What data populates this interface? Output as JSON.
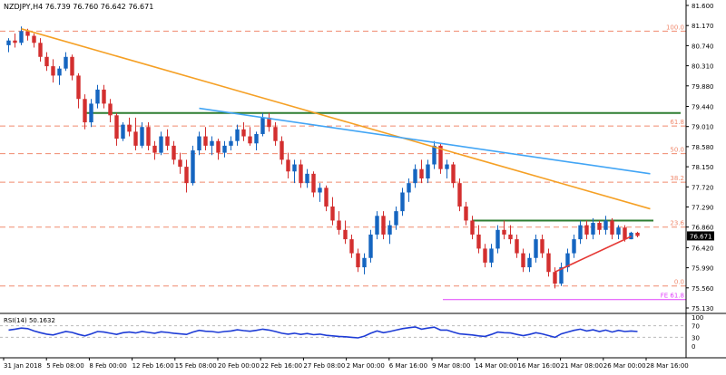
{
  "header": {
    "symbol_line": "NZDJPY,H4 76.739 76.760 76.642 76.671"
  },
  "chart_data": {
    "type": "candlestick",
    "symbol": "NZDJPY",
    "timeframe": "H4",
    "ohlc_last": {
      "open": 76.739,
      "high": 76.76,
      "low": 76.642,
      "close": 76.671
    },
    "price_axis": {
      "ticks": [
        "81.600",
        "81.170",
        "80.740",
        "80.310",
        "79.880",
        "79.440",
        "79.010",
        "78.580",
        "78.150",
        "77.720",
        "77.290",
        "76.860",
        "76.420",
        "75.990",
        "75.560",
        "75.130"
      ],
      "ylim": [
        75.13,
        81.6
      ],
      "current_price": "76.671"
    },
    "time_axis": {
      "labels": [
        "31 Jan 2018",
        "5 Feb 08:00",
        "8 Feb 00:00",
        "12 Feb 16:00",
        "15 Feb 08:00",
        "20 Feb 00:00",
        "22 Feb 16:00",
        "27 Feb 08:00",
        "2 Mar 00:00",
        "6 Mar 16:00",
        "9 Mar 08:00",
        "14 Mar 00:00",
        "16 Mar 16:00",
        "21 Mar 08:00",
        "26 Mar 00:00",
        "28 Mar 16:00"
      ]
    },
    "fib_levels": [
      {
        "label": "100.0",
        "price": 81.05
      },
      {
        "label": "61.8",
        "price": 79.02
      },
      {
        "label": "50.0",
        "price": 78.43
      },
      {
        "label": "38.2",
        "price": 77.82
      },
      {
        "label": "23.6",
        "price": 76.86
      },
      {
        "label": "0.0",
        "price": 75.6
      },
      {
        "label": "FE 61.8",
        "price": 75.31
      }
    ],
    "horizontal_lines": [
      {
        "price": 79.3,
        "color": "#2e7d32"
      },
      {
        "price": 77.0,
        "color": "#2e7d32"
      }
    ],
    "candles": [
      [
        80.75,
        80.9,
        80.6,
        80.85
      ],
      [
        80.85,
        81.0,
        80.7,
        80.8
      ],
      [
        80.8,
        81.15,
        80.75,
        81.05
      ],
      [
        81.05,
        81.1,
        80.85,
        80.95
      ],
      [
        80.95,
        81.0,
        80.7,
        80.8
      ],
      [
        80.8,
        80.9,
        80.4,
        80.5
      ],
      [
        80.5,
        80.6,
        80.2,
        80.3
      ],
      [
        80.3,
        80.45,
        79.95,
        80.1
      ],
      [
        80.1,
        80.3,
        79.9,
        80.25
      ],
      [
        80.25,
        80.6,
        80.2,
        80.5
      ],
      [
        80.5,
        80.55,
        80.0,
        80.1
      ],
      [
        80.1,
        80.15,
        79.4,
        79.6
      ],
      [
        79.6,
        79.7,
        78.95,
        79.1
      ],
      [
        79.1,
        79.6,
        79.0,
        79.5
      ],
      [
        79.5,
        79.9,
        79.4,
        79.8
      ],
      [
        79.8,
        79.9,
        79.4,
        79.5
      ],
      [
        79.5,
        79.6,
        79.1,
        79.25
      ],
      [
        79.25,
        79.3,
        78.6,
        78.75
      ],
      [
        78.75,
        79.1,
        78.7,
        79.05
      ],
      [
        79.05,
        79.2,
        78.8,
        78.9
      ],
      [
        78.9,
        79.2,
        78.5,
        78.6
      ],
      [
        78.6,
        79.1,
        78.55,
        79.0
      ],
      [
        79.0,
        79.1,
        78.5,
        78.6
      ],
      [
        78.6,
        78.7,
        78.3,
        78.45
      ],
      [
        78.45,
        78.9,
        78.4,
        78.8
      ],
      [
        78.8,
        78.95,
        78.5,
        78.6
      ],
      [
        78.6,
        78.7,
        78.2,
        78.3
      ],
      [
        78.3,
        78.45,
        78.0,
        78.15
      ],
      [
        78.15,
        78.3,
        77.6,
        77.8
      ],
      [
        77.8,
        78.6,
        77.75,
        78.5
      ],
      [
        78.5,
        78.9,
        78.4,
        78.8
      ],
      [
        78.8,
        79.0,
        78.5,
        78.6
      ],
      [
        78.6,
        78.8,
        78.4,
        78.7
      ],
      [
        78.7,
        78.75,
        78.3,
        78.45
      ],
      [
        78.45,
        78.7,
        78.35,
        78.6
      ],
      [
        78.6,
        78.8,
        78.5,
        78.7
      ],
      [
        78.7,
        79.05,
        78.6,
        78.95
      ],
      [
        78.95,
        79.1,
        78.7,
        78.8
      ],
      [
        78.8,
        79.0,
        78.6,
        78.65
      ],
      [
        78.65,
        78.9,
        78.5,
        78.85
      ],
      [
        78.85,
        79.3,
        78.8,
        79.2
      ],
      [
        79.2,
        79.3,
        78.9,
        79.0
      ],
      [
        79.0,
        79.1,
        78.6,
        78.7
      ],
      [
        78.7,
        78.8,
        78.2,
        78.3
      ],
      [
        78.3,
        78.45,
        77.9,
        78.05
      ],
      [
        78.05,
        78.3,
        77.8,
        78.2
      ],
      [
        78.2,
        78.3,
        77.7,
        77.8
      ],
      [
        77.8,
        78.1,
        77.7,
        78.0
      ],
      [
        78.0,
        78.05,
        77.5,
        77.6
      ],
      [
        77.6,
        77.8,
        77.4,
        77.7
      ],
      [
        77.7,
        77.75,
        77.2,
        77.3
      ],
      [
        77.3,
        77.5,
        76.9,
        77.0
      ],
      [
        77.0,
        77.2,
        76.7,
        76.8
      ],
      [
        76.8,
        77.0,
        76.5,
        76.6
      ],
      [
        76.6,
        76.7,
        76.2,
        76.3
      ],
      [
        76.3,
        76.4,
        75.9,
        76.0
      ],
      [
        76.0,
        76.3,
        75.85,
        76.2
      ],
      [
        76.2,
        76.8,
        76.1,
        76.7
      ],
      [
        76.7,
        77.2,
        76.6,
        77.1
      ],
      [
        77.1,
        77.2,
        76.6,
        76.7
      ],
      [
        76.7,
        77.0,
        76.5,
        76.9
      ],
      [
        76.9,
        77.3,
        76.8,
        77.2
      ],
      [
        77.2,
        77.7,
        77.1,
        77.6
      ],
      [
        77.6,
        77.9,
        77.4,
        77.8
      ],
      [
        77.8,
        78.2,
        77.7,
        78.1
      ],
      [
        78.1,
        78.3,
        77.8,
        77.9
      ],
      [
        77.9,
        78.3,
        77.8,
        78.2
      ],
      [
        78.2,
        78.7,
        78.1,
        78.6
      ],
      [
        78.6,
        78.65,
        78.0,
        78.1
      ],
      [
        78.1,
        78.3,
        77.9,
        78.2
      ],
      [
        78.2,
        78.25,
        77.7,
        77.8
      ],
      [
        77.8,
        77.9,
        77.2,
        77.3
      ],
      [
        77.3,
        77.4,
        76.9,
        77.0
      ],
      [
        77.0,
        77.1,
        76.6,
        76.7
      ],
      [
        76.7,
        76.9,
        76.3,
        76.4
      ],
      [
        76.4,
        76.5,
        76.0,
        76.1
      ],
      [
        76.1,
        76.5,
        76.0,
        76.4
      ],
      [
        76.4,
        76.9,
        76.3,
        76.8
      ],
      [
        76.8,
        77.0,
        76.6,
        76.7
      ],
      [
        76.7,
        76.9,
        76.5,
        76.6
      ],
      [
        76.6,
        76.7,
        76.2,
        76.3
      ],
      [
        76.3,
        76.4,
        75.9,
        76.0
      ],
      [
        76.0,
        76.3,
        75.9,
        76.2
      ],
      [
        76.2,
        76.7,
        76.1,
        76.6
      ],
      [
        76.6,
        76.7,
        76.2,
        76.3
      ],
      [
        76.3,
        76.4,
        75.8,
        75.9
      ],
      [
        75.9,
        76.0,
        75.55,
        75.65
      ],
      [
        75.65,
        76.1,
        75.6,
        76.0
      ],
      [
        76.0,
        76.4,
        75.9,
        76.3
      ],
      [
        76.3,
        76.7,
        76.2,
        76.6
      ],
      [
        76.6,
        77.0,
        76.5,
        76.9
      ],
      [
        76.9,
        77.0,
        76.6,
        76.7
      ],
      [
        76.7,
        77.05,
        76.6,
        76.95
      ],
      [
        76.95,
        77.0,
        76.7,
        76.8
      ],
      [
        76.8,
        77.1,
        76.7,
        77.0
      ],
      [
        77.0,
        77.05,
        76.6,
        76.7
      ],
      [
        76.7,
        76.9,
        76.6,
        76.85
      ],
      [
        76.85,
        76.9,
        76.55,
        76.6
      ],
      [
        76.6,
        76.76,
        76.6,
        76.74
      ],
      [
        76.739,
        76.76,
        76.642,
        76.671
      ]
    ],
    "trendlines": [
      {
        "color": "#f5a025",
        "from": {
          "candle": 2,
          "price": 81.1
        },
        "to": {
          "candle": 101,
          "price": 77.25
        }
      },
      {
        "color": "#42a5f5",
        "from": {
          "candle": 30,
          "price": 79.4
        },
        "to": {
          "candle": 101,
          "price": 78.0
        }
      },
      {
        "color": "#e53935",
        "from": {
          "candle": 86,
          "price": 75.9
        },
        "to": {
          "candle": 98,
          "price": 76.66
        }
      }
    ],
    "rsi": {
      "label": "RSI(14) 50.1632",
      "period": 14,
      "value": 50.1632,
      "ticks": [
        "100",
        "70",
        "30",
        "0"
      ],
      "levels": [
        70,
        30
      ],
      "values": [
        55,
        58,
        62,
        60,
        52,
        46,
        41,
        38,
        44,
        50,
        47,
        40,
        35,
        42,
        50,
        48,
        44,
        40,
        46,
        48,
        45,
        50,
        47,
        44,
        49,
        47,
        44,
        42,
        40,
        48,
        54,
        51,
        50,
        47,
        50,
        52,
        56,
        53,
        51,
        54,
        58,
        55,
        50,
        44,
        41,
        44,
        40,
        43,
        39,
        41,
        37,
        35,
        33,
        32,
        30,
        28,
        34,
        44,
        52,
        46,
        50,
        55,
        60,
        63,
        66,
        58,
        62,
        65,
        55,
        55,
        48,
        42,
        40,
        38,
        35,
        33,
        40,
        48,
        46,
        45,
        40,
        36,
        40,
        46,
        42,
        36,
        30,
        42,
        48,
        54,
        58,
        52,
        56,
        50,
        55,
        48,
        54,
        50,
        52,
        50
      ]
    }
  }
}
